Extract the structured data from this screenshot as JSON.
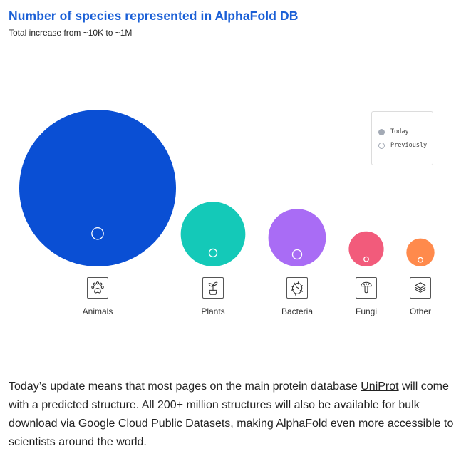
{
  "chart_data": {
    "type": "bubble",
    "title": "Number of species represented in AlphaFold DB",
    "subtitle": "Total increase from ~10K to ~1M",
    "legend": {
      "position": "top-right",
      "items": [
        {
          "label": "Today",
          "style": "filled"
        },
        {
          "label": "Previously",
          "style": "outline"
        }
      ]
    },
    "categories": [
      "Animals",
      "Plants",
      "Bacteria",
      "Fungi",
      "Other"
    ],
    "series": [
      {
        "name": "Today",
        "values": [
          1.0,
          0.17,
          0.135,
          0.05,
          0.032
        ]
      },
      {
        "name": "Previously",
        "values": [
          0.0055,
          0.0025,
          0.0035,
          0.0009,
          0.0009
        ]
      }
    ],
    "colors": [
      "#0a4fd4",
      "#14c9b8",
      "#a96cf5",
      "#f25b7b",
      "#ff8a4c"
    ],
    "icons": [
      "paw-icon",
      "plant-icon",
      "bacteria-icon",
      "mushroom-icon",
      "layers-icon"
    ]
  },
  "paragraph": {
    "part1": "Today’s update means that most pages on the main protein database ",
    "link1": "UniProt",
    "part2": " will come with a predicted structure. All 200+ million structures will also be available for bulk download via ",
    "link2": "Google Cloud Public Datasets",
    "part3": ", making AlphaFold even more accessible to scientists around the world."
  }
}
